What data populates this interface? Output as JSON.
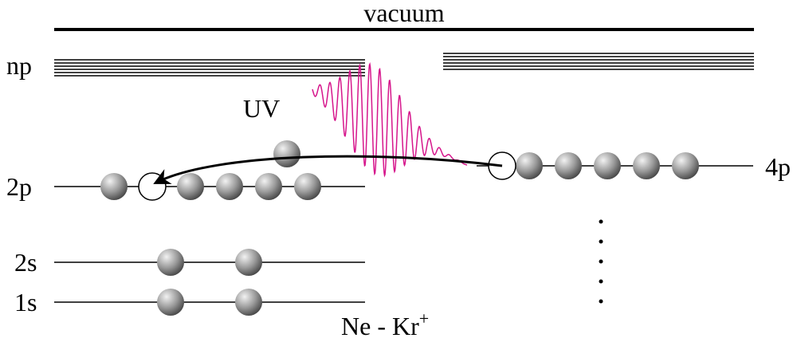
{
  "labels": {
    "vacuum": "vacuum",
    "np": "np",
    "uv": "UV",
    "two_p": "2p",
    "four_p": "4p",
    "two_s": "2s",
    "one_s": "1s",
    "system": "Ne - Kr",
    "charge": "+"
  }
}
